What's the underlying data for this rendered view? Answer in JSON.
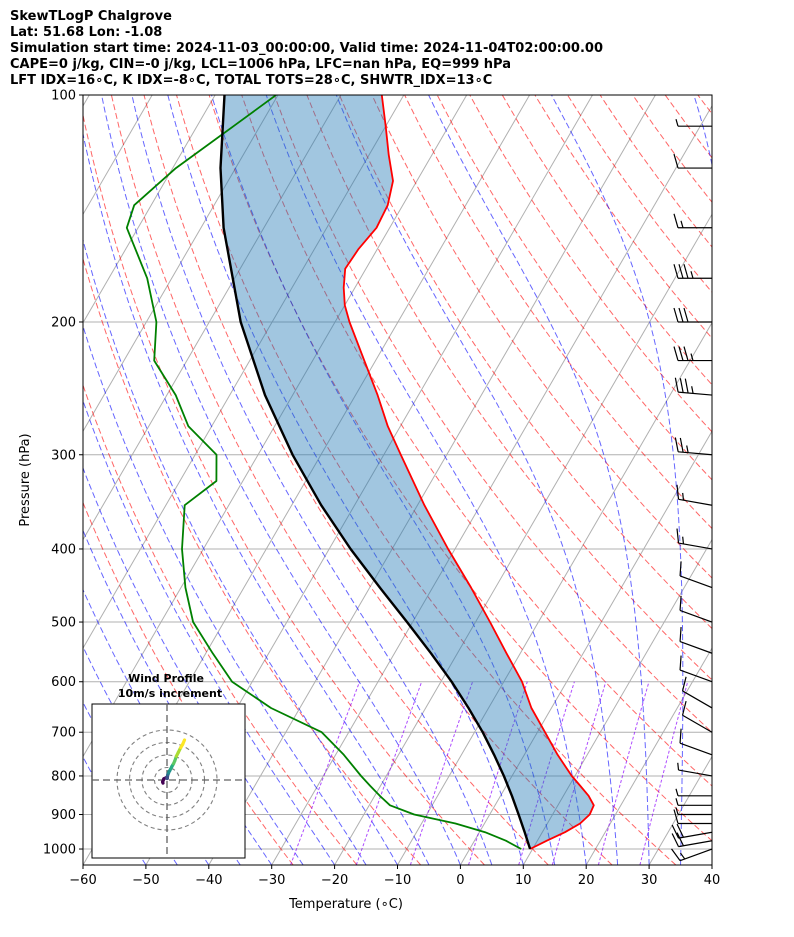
{
  "header": {
    "line1": "SkewTLogP Chalgrove",
    "line2": "Lat: 51.68   Lon: -1.08",
    "line3": "Simulation start time: 2024-11-03_00:00:00, Valid time: 2024-11-04T02:00:00.00",
    "line4": "CAPE=0 j/kg, CIN=-0 j/kg, LCL=1006 hPa, LFC=nan hPa, EQ=999 hPa",
    "line5": "LFT IDX=16∘C, K IDX=-8∘C, TOTAL TOTS=28∘C, SHWTR_IDX=13∘C"
  },
  "chart_data": {
    "type": "line",
    "xlabel": "Temperature (∘C)",
    "ylabel": "Pressure (hPa)",
    "xlim": [
      -60,
      40
    ],
    "ylim": [
      1050,
      100
    ],
    "x_ticks": [
      "−60",
      "−50",
      "−40",
      "−30",
      "−20",
      "−10",
      "0",
      "10",
      "20",
      "30",
      "40"
    ],
    "x_tick_values": [
      -60,
      -50,
      -40,
      -30,
      -20,
      -10,
      0,
      10,
      20,
      30,
      40
    ],
    "y_ticks": [
      "100",
      "200",
      "300",
      "400",
      "500",
      "600",
      "700",
      "800",
      "900",
      "1000"
    ],
    "y_tick_values": [
      100,
      200,
      300,
      400,
      500,
      600,
      700,
      800,
      900,
      1000
    ],
    "y_scale": "log",
    "temperature": {
      "color": "#ff0000",
      "p": [
        1000,
        975,
        950,
        925,
        900,
        875,
        850,
        825,
        800,
        750,
        700,
        650,
        600,
        550,
        500,
        450,
        400,
        350,
        300,
        275,
        250,
        225,
        200,
        190,
        180,
        170,
        160,
        150,
        140,
        130,
        120,
        110,
        100
      ],
      "t": [
        9.6,
        11.5,
        13.6,
        15.2,
        15.9,
        15.7,
        14.0,
        11.8,
        9.5,
        5.3,
        1.2,
        -3.2,
        -7.1,
        -12.2,
        -17.7,
        -23.9,
        -31.1,
        -38.9,
        -47.3,
        -52.0,
        -56.5,
        -61.8,
        -67.7,
        -70.0,
        -71.8,
        -73.3,
        -73.0,
        -72.1,
        -72.4,
        -73.8,
        -76.9,
        -80.0,
        -83.5
      ]
    },
    "dewpoint": {
      "color": "#008000",
      "p": [
        1000,
        975,
        950,
        925,
        900,
        875,
        850,
        825,
        800,
        750,
        700,
        650,
        600,
        550,
        500,
        450,
        400,
        350,
        325,
        300,
        275,
        250,
        225,
        200,
        175,
        150,
        140,
        125,
        110,
        100
      ],
      "t": [
        8.2,
        5.0,
        0.9,
        -4.6,
        -12.0,
        -16.7,
        -19.2,
        -21.6,
        -24.0,
        -28.7,
        -34.3,
        -44.6,
        -53.2,
        -58.9,
        -64.9,
        -69.3,
        -73.4,
        -77.0,
        -74.2,
        -76.6,
        -83.7,
        -88.6,
        -95.2,
        -98.4,
        -103.9,
        -111.8,
        -112.7,
        -109.5,
        -104.2,
        -100.3
      ]
    },
    "parcel": {
      "color": "#000000",
      "p": [
        1000,
        950,
        900,
        850,
        800,
        750,
        700,
        650,
        600,
        550,
        500,
        450,
        400,
        350,
        300,
        250,
        200,
        150,
        125,
        100
      ],
      "t": [
        9.6,
        7.2,
        4.6,
        1.8,
        -1.3,
        -4.8,
        -8.7,
        -13.2,
        -18.3,
        -24.2,
        -30.9,
        -38.4,
        -46.6,
        -55.3,
        -64.5,
        -74.4,
        -85.0,
        -96.4,
        -102.4,
        -108.5
      ]
    },
    "wind_barbs": {
      "p": [
        1000,
        975,
        950,
        925,
        900,
        875,
        850,
        800,
        750,
        700,
        650,
        600,
        550,
        500,
        450,
        400,
        350,
        300,
        250,
        225,
        200,
        175,
        150,
        125,
        110
      ],
      "speed_kt": [
        15,
        20,
        20,
        10,
        5,
        5,
        5,
        5,
        10,
        10,
        10,
        10,
        10,
        10,
        10,
        15,
        15,
        25,
        35,
        35,
        30,
        35,
        15,
        10,
        5
      ],
      "direction_deg": [
        250,
        260,
        260,
        270,
        270,
        270,
        270,
        280,
        290,
        300,
        300,
        290,
        290,
        290,
        290,
        280,
        280,
        275,
        275,
        270,
        270,
        270,
        270,
        270,
        270
      ]
    },
    "hodograph": {
      "title": "Wind Profile",
      "subtitle": "10m/s increment",
      "rings_ms": [
        10,
        20,
        30,
        40
      ],
      "u": [
        -3.2,
        -3.5,
        -2.5,
        -0.5,
        0.0,
        0.2,
        0.4,
        0.7,
        1.0,
        1.4,
        1.8,
        2.2,
        3.0,
        4.0,
        5.2,
        6.3,
        7.5,
        9.0,
        11.0,
        12.5,
        14.0
      ],
      "v": [
        -2.5,
        -1.5,
        1.0,
        2.0,
        1.6,
        1.2,
        3.0,
        4.5,
        5.0,
        6.0,
        7.0,
        7.5,
        9.0,
        11.0,
        13.0,
        15.5,
        19.0,
        22.0,
        26.0,
        28.5,
        32.0
      ]
    }
  }
}
